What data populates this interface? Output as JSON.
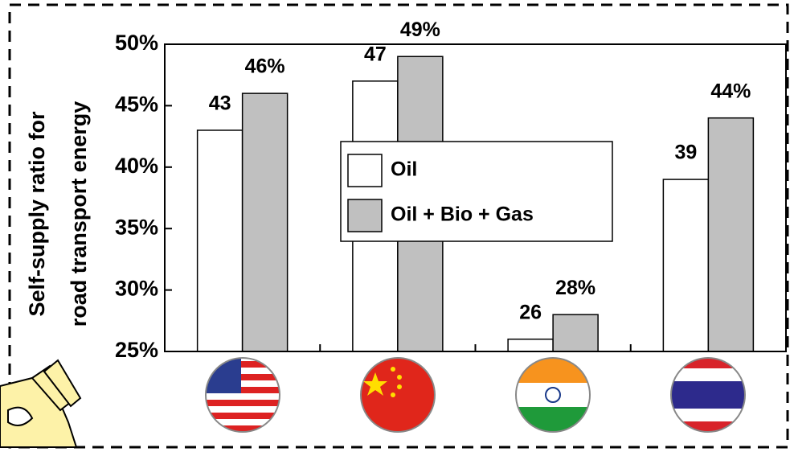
{
  "chart_data": {
    "type": "bar",
    "ylabel": [
      "Self-supply ratio for",
      "road transport energy"
    ],
    "categories": [
      null,
      null,
      null,
      null
    ],
    "series": [
      {
        "name": "Oil",
        "color": "#ffffff",
        "values": [
          43,
          47,
          26,
          39
        ]
      },
      {
        "name": "Oil + Bio + Gas",
        "color": "#c0c0c0",
        "values": [
          46,
          49,
          28,
          44
        ],
        "value_labels": [
          "46%",
          "49%",
          "28%",
          "44%"
        ]
      }
    ],
    "ylim": [
      25,
      50
    ],
    "yticks": [
      {
        "value": 25,
        "label": "25%"
      },
      {
        "value": 30,
        "label": "30%"
      },
      {
        "value": 35,
        "label": "35%"
      },
      {
        "value": 40,
        "label": "40%"
      },
      {
        "value": 45,
        "label": "45%"
      },
      {
        "value": 50,
        "label": "50%"
      }
    ]
  }
}
